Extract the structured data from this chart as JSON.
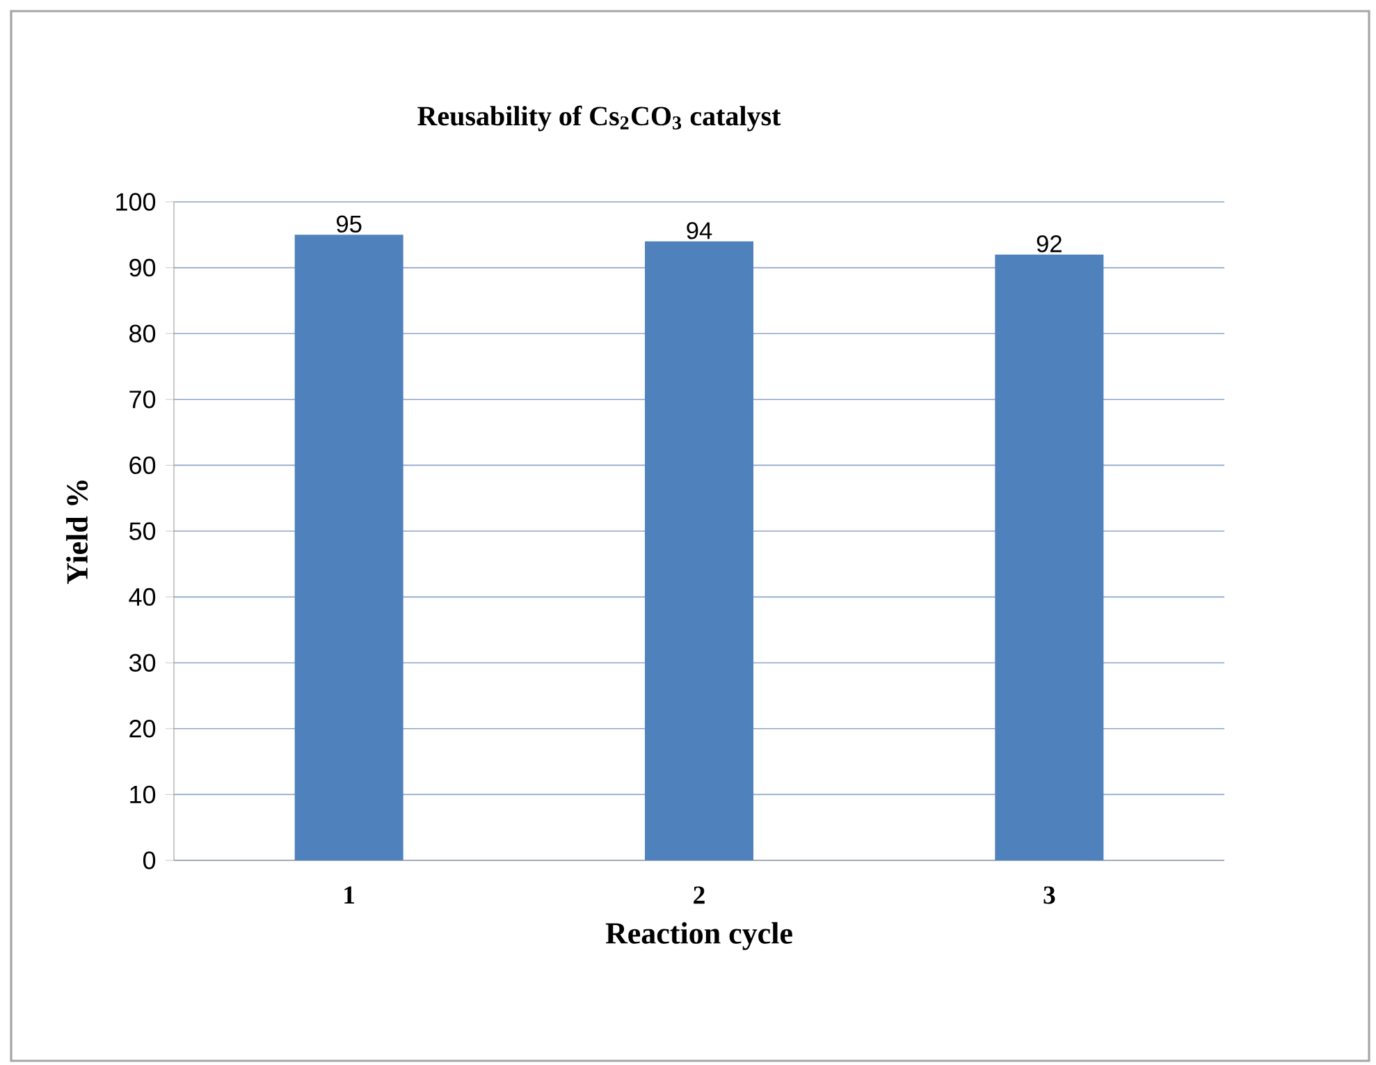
{
  "chart_data": {
    "type": "bar",
    "title": "Reusability of Cs$_{2}$CO$_{3}$ catalyst",
    "xlabel": "Reaction cycle",
    "ylabel": "Yield  %",
    "categories": [
      "1",
      "2",
      "3"
    ],
    "values": [
      95,
      94,
      92
    ],
    "color": "#4f81bd",
    "ylim": [
      0,
      100
    ],
    "yticks": [
      0,
      10,
      20,
      30,
      40,
      50,
      60,
      70,
      80,
      90,
      100
    ],
    "grid": "y",
    "data_labels": true
  }
}
